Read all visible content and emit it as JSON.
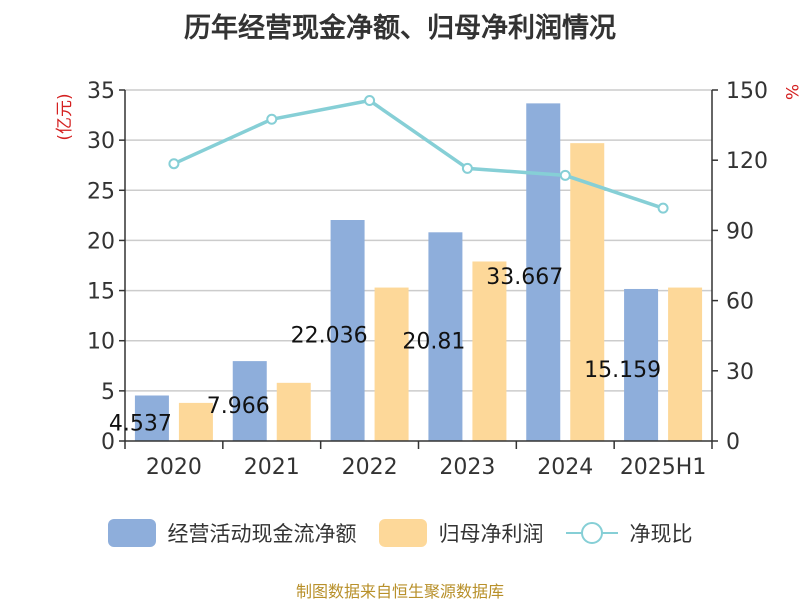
{
  "title": "历年经营现金净额、归母净利润情况",
  "source": "制图数据来自恒生聚源数据库",
  "colors": {
    "operating_cash": "#8eaedb",
    "net_profit": "#fdd899",
    "ratio_line": "#86cfd6",
    "axis_unit_text": "#d42020"
  },
  "chart_data": {
    "type": "bar",
    "categories": [
      "2020",
      "2021",
      "2022",
      "2023",
      "2024",
      "2025H1"
    ],
    "y_left": {
      "unit": "(亿元)",
      "min": 0,
      "max": 35,
      "ticks": [
        0,
        5,
        10,
        15,
        20,
        25,
        30,
        35
      ]
    },
    "y_right": {
      "unit": "%",
      "min": 0,
      "max": 150,
      "ticks": [
        0,
        30,
        60,
        90,
        120,
        150
      ]
    },
    "grid": true,
    "legend_position": "bottom",
    "series": [
      {
        "name": "经营活动现金流净额",
        "type": "bar",
        "axis": "left",
        "values": [
          4.537,
          7.966,
          22.036,
          20.81,
          33.667,
          15.159
        ],
        "labels": [
          "4.537",
          "7.966",
          "22.036",
          "20.81",
          "33.667",
          "15.159"
        ]
      },
      {
        "name": "归母净利润",
        "type": "bar",
        "axis": "left",
        "values": [
          3.8,
          5.8,
          15.3,
          17.9,
          29.7,
          15.3
        ]
      },
      {
        "name": "净现比",
        "type": "line",
        "axis": "right",
        "values": [
          118.5,
          137.5,
          145.5,
          116.5,
          113.5,
          99.5
        ]
      }
    ]
  }
}
